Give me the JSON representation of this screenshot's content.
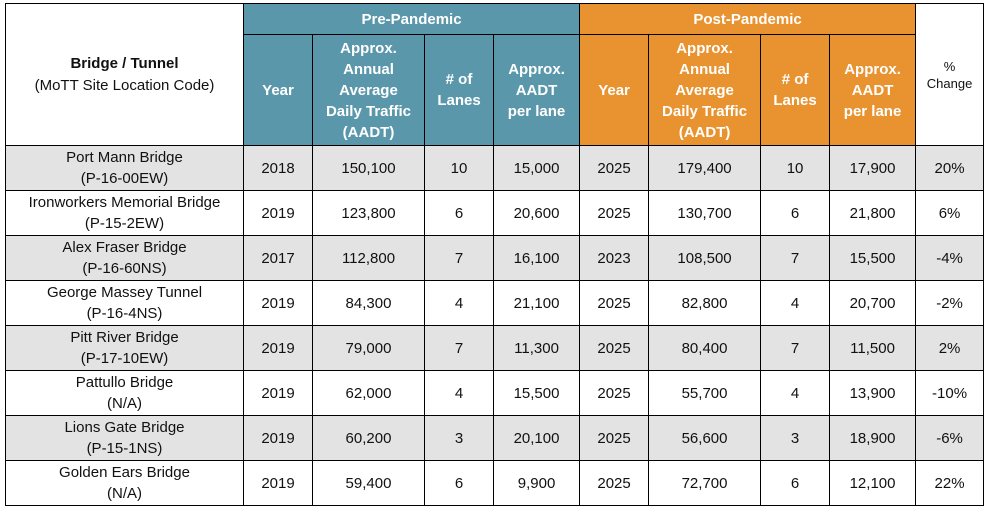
{
  "header": {
    "bridge_title": "Bridge / Tunnel",
    "bridge_subtitle": "(MoTT Site Location Code)",
    "pre_group": "Pre-Pandemic",
    "post_group": "Post-Pandemic",
    "col_year": "Year",
    "col_aadt_lines": [
      "Approx.",
      "Annual",
      "Average",
      "Daily Traffic",
      "(AADT)"
    ],
    "col_lanes_lines": [
      "# of",
      "Lanes"
    ],
    "col_per_lane_lines": [
      "Approx.",
      "AADT",
      "per lane"
    ],
    "pct_lines": [
      "%",
      "Change"
    ]
  },
  "rows": [
    {
      "name": "Port Mann Bridge",
      "code": "(P-16-00EW)",
      "pre_year": "2018",
      "pre_aadt": "150,100",
      "pre_lanes": "10",
      "pre_per_lane": "15,000",
      "post_year": "2025",
      "post_aadt": "179,400",
      "post_lanes": "10",
      "post_per_lane": "17,900",
      "change": "20%"
    },
    {
      "name": "Ironworkers Memorial Bridge",
      "code": "(P-15-2EW)",
      "pre_year": "2019",
      "pre_aadt": "123,800",
      "pre_lanes": "6",
      "pre_per_lane": "20,600",
      "post_year": "2025",
      "post_aadt": "130,700",
      "post_lanes": "6",
      "post_per_lane": "21,800",
      "change": "6%"
    },
    {
      "name": "Alex Fraser Bridge",
      "code": "(P-16-60NS)",
      "pre_year": "2017",
      "pre_aadt": "112,800",
      "pre_lanes": "7",
      "pre_per_lane": "16,100",
      "post_year": "2023",
      "post_aadt": "108,500",
      "post_lanes": "7",
      "post_per_lane": "15,500",
      "change": "-4%"
    },
    {
      "name": "George Massey Tunnel",
      "code": "(P-16-4NS)",
      "pre_year": "2019",
      "pre_aadt": "84,300",
      "pre_lanes": "4",
      "pre_per_lane": "21,100",
      "post_year": "2025",
      "post_aadt": "82,800",
      "post_lanes": "4",
      "post_per_lane": "20,700",
      "change": "-2%"
    },
    {
      "name": "Pitt River Bridge",
      "code": "(P-17-10EW)",
      "pre_year": "2019",
      "pre_aadt": "79,000",
      "pre_lanes": "7",
      "pre_per_lane": "11,300",
      "post_year": "2025",
      "post_aadt": "80,400",
      "post_lanes": "7",
      "post_per_lane": "11,500",
      "change": "2%"
    },
    {
      "name": "Pattullo Bridge",
      "code": "(N/A)",
      "pre_year": "2019",
      "pre_aadt": "62,000",
      "pre_lanes": "4",
      "pre_per_lane": "15,500",
      "post_year": "2025",
      "post_aadt": "55,700",
      "post_lanes": "4",
      "post_per_lane": "13,900",
      "change": "-10%"
    },
    {
      "name": "Lions Gate Bridge",
      "code": "(P-15-1NS)",
      "pre_year": "2019",
      "pre_aadt": "60,200",
      "pre_lanes": "3",
      "pre_per_lane": "20,100",
      "post_year": "2025",
      "post_aadt": "56,600",
      "post_lanes": "3",
      "post_per_lane": "18,900",
      "change": "-6%"
    },
    {
      "name": "Golden Ears Bridge",
      "code": "(N/A)",
      "pre_year": "2019",
      "pre_aadt": "59,400",
      "pre_lanes": "6",
      "pre_per_lane": "9,900",
      "post_year": "2025",
      "post_aadt": "72,700",
      "post_lanes": "6",
      "post_per_lane": "12,100",
      "change": "22%"
    }
  ],
  "colors": {
    "pre_header": "#5b97ab",
    "post_header": "#e8932f",
    "row_shade": "#e3e3e3"
  }
}
